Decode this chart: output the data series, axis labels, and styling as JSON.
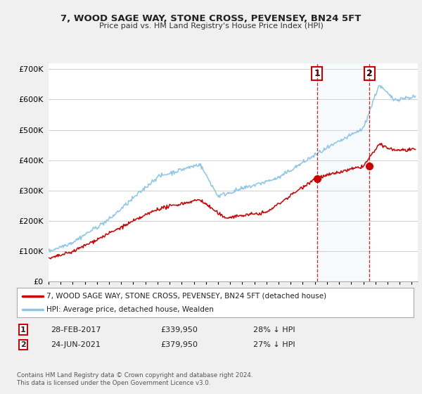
{
  "title": "7, WOOD SAGE WAY, STONE CROSS, PEVENSEY, BN24 5FT",
  "subtitle": "Price paid vs. HM Land Registry's House Price Index (HPI)",
  "legend_line1": "7, WOOD SAGE WAY, STONE CROSS, PEVENSEY, BN24 5FT (detached house)",
  "legend_line2": "HPI: Average price, detached house, Wealden",
  "transaction1_date": "28-FEB-2017",
  "transaction1_price": "£339,950",
  "transaction1_hpi": "28% ↓ HPI",
  "transaction2_date": "24-JUN-2021",
  "transaction2_price": "£379,950",
  "transaction2_hpi": "27% ↓ HPI",
  "copyright": "Contains HM Land Registry data © Crown copyright and database right 2024.\nThis data is licensed under the Open Government Licence v3.0.",
  "hpi_color": "#8ec6e8",
  "price_color": "#cc0000",
  "shade_color": "#d0e8f5",
  "ylim": [
    0,
    720000
  ],
  "yticks": [
    0,
    100000,
    200000,
    300000,
    400000,
    500000,
    600000,
    700000
  ],
  "ytick_labels": [
    "£0",
    "£100K",
    "£200K",
    "£300K",
    "£400K",
    "£500K",
    "£600K",
    "£700K"
  ],
  "background_color": "#f0f0f0",
  "plot_bg": "#ffffff",
  "t1_year": 2017.167,
  "t1_price": 339950,
  "t2_year": 2021.5,
  "t2_price": 379950,
  "xmin": 1995,
  "xmax": 2025.5
}
